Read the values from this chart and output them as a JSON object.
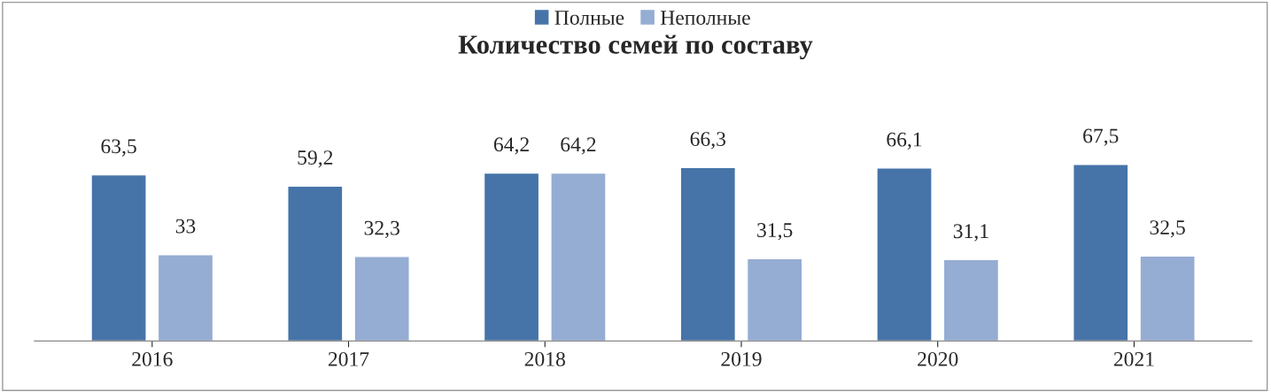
{
  "chart_data": {
    "type": "bar",
    "title": "Количество семей по составу",
    "categories": [
      "2016",
      "2017",
      "2018",
      "2019",
      "2020",
      "2021"
    ],
    "series": [
      {
        "name": "Полные",
        "color": "#4674a8",
        "values": [
          63.5,
          59.2,
          64.2,
          66.3,
          66.1,
          67.5
        ],
        "value_labels": [
          "63,5",
          "59,2",
          "64,2",
          "66,3",
          "66,1",
          "67,5"
        ]
      },
      {
        "name": "Неполные",
        "color": "#95acd3",
        "values": [
          33,
          32.3,
          64.2,
          31.5,
          31.1,
          32.5
        ],
        "value_labels": [
          "33",
          "32,3",
          "64,2",
          "31,5",
          "31,1",
          "32,5"
        ]
      }
    ],
    "legend": "top",
    "tick_labels": "x",
    "grid": false
  }
}
